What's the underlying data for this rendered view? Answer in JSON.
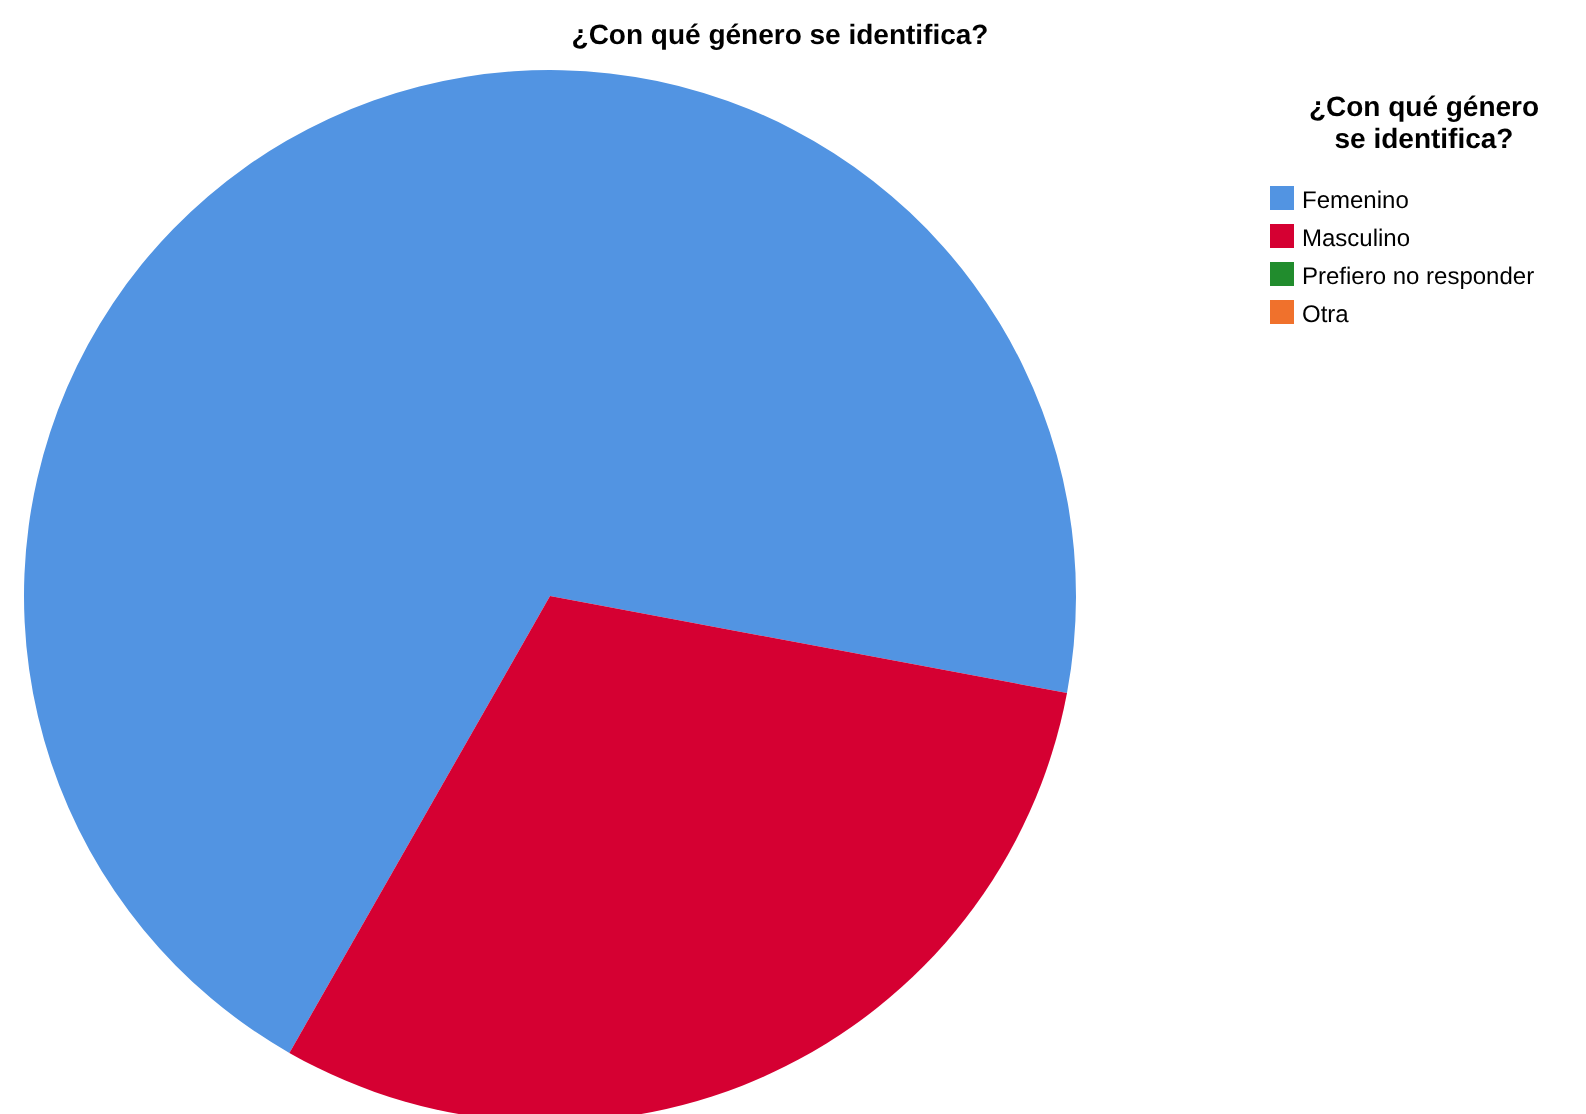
{
  "chart_data": {
    "type": "pie",
    "title": "¿Con qué género se identifica?",
    "legend_title": "¿Con qué género se identifica?",
    "legend": "top right",
    "categories": [
      "Femenino",
      "Masculino",
      "Prefiero no responder",
      "Otra"
    ],
    "values": [
      69.7,
      30.3,
      0,
      0
    ],
    "colors": [
      "#5294e2",
      "#d50032",
      "#218c2d",
      "#f0712c"
    ]
  }
}
